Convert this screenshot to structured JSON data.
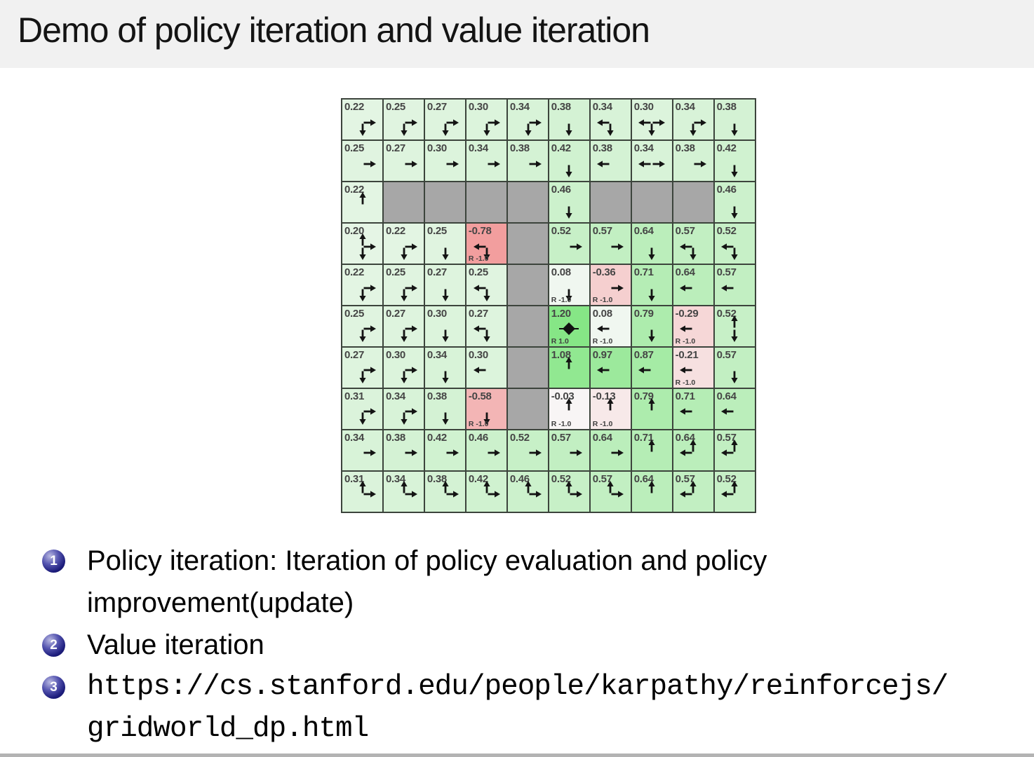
{
  "slide": {
    "title": "Demo of policy iteration and value iteration"
  },
  "bullets": [
    {
      "number": "1",
      "lines": [
        "Policy iteration: Iteration of policy evaluation and policy",
        "improvement(update)"
      ]
    },
    {
      "number": "2",
      "lines": [
        "Value iteration"
      ]
    },
    {
      "number": "3",
      "lines": [
        "https://cs.stanford.edu/people/karpathy/reinforcejs/",
        "gridworld_dp.html"
      ]
    }
  ],
  "colors": {
    "title_bar_bg": "#f1f1f1",
    "slide_bg": "#ffffff",
    "grid_line": "#3c443c",
    "wall_cell": "#a7a7a7",
    "positive_value_cell_max": "#86e686",
    "negative_value_cell": "#f2a0a0",
    "arrow": "#141414",
    "bullet_ball": "#1d1d7c"
  },
  "gridworld": {
    "rows": 10,
    "cols": 10,
    "goal_marker": "diamond",
    "legend": "cells show state value, greedy policy arrows, and reward labels",
    "cells": [
      [
        {
          "v": "0.22",
          "p": [
            "d",
            "r"
          ]
        },
        {
          "v": "0.25",
          "p": [
            "d",
            "r"
          ]
        },
        {
          "v": "0.27",
          "p": [
            "d",
            "r"
          ]
        },
        {
          "v": "0.30",
          "p": [
            "d",
            "r"
          ]
        },
        {
          "v": "0.34",
          "p": [
            "d",
            "r"
          ]
        },
        {
          "v": "0.38",
          "p": [
            "d"
          ]
        },
        {
          "v": "0.34",
          "p": [
            "l",
            "d"
          ]
        },
        {
          "v": "0.30",
          "p": [
            "l",
            "r",
            "d"
          ]
        },
        {
          "v": "0.34",
          "p": [
            "r",
            "d"
          ]
        },
        {
          "v": "0.38",
          "p": [
            "d"
          ]
        }
      ],
      [
        {
          "v": "0.25",
          "p": [
            "r"
          ]
        },
        {
          "v": "0.27",
          "p": [
            "r"
          ]
        },
        {
          "v": "0.30",
          "p": [
            "r"
          ]
        },
        {
          "v": "0.34",
          "p": [
            "r"
          ]
        },
        {
          "v": "0.38",
          "p": [
            "r"
          ]
        },
        {
          "v": "0.42",
          "p": [
            "d"
          ]
        },
        {
          "v": "0.38",
          "p": [
            "l"
          ]
        },
        {
          "v": "0.34",
          "p": [
            "l",
            "r"
          ]
        },
        {
          "v": "0.38",
          "p": [
            "r"
          ]
        },
        {
          "v": "0.42",
          "p": [
            "d"
          ]
        }
      ],
      [
        {
          "v": "0.22",
          "p": [
            "u"
          ]
        },
        {
          "wall": true
        },
        {
          "wall": true
        },
        {
          "wall": true
        },
        {
          "wall": true
        },
        {
          "v": "0.46",
          "p": [
            "d"
          ]
        },
        {
          "wall": true
        },
        {
          "wall": true
        },
        {
          "wall": true
        },
        {
          "v": "0.46",
          "p": [
            "d"
          ]
        }
      ],
      [
        {
          "v": "0.20",
          "p": [
            "u",
            "r",
            "d"
          ]
        },
        {
          "v": "0.22",
          "p": [
            "r",
            "d"
          ]
        },
        {
          "v": "0.25",
          "p": [
            "d"
          ]
        },
        {
          "v": "-0.78",
          "p": [
            "l",
            "d"
          ],
          "r": "R -1.0"
        },
        {
          "wall": true
        },
        {
          "v": "0.52",
          "p": [
            "r"
          ]
        },
        {
          "v": "0.57",
          "p": [
            "r"
          ]
        },
        {
          "v": "0.64",
          "p": [
            "d"
          ]
        },
        {
          "v": "0.57",
          "p": [
            "l",
            "d"
          ]
        },
        {
          "v": "0.52",
          "p": [
            "l",
            "d"
          ]
        }
      ],
      [
        {
          "v": "0.22",
          "p": [
            "r",
            "d"
          ]
        },
        {
          "v": "0.25",
          "p": [
            "r",
            "d"
          ]
        },
        {
          "v": "0.27",
          "p": [
            "d"
          ]
        },
        {
          "v": "0.25",
          "p": [
            "l",
            "d"
          ]
        },
        {
          "wall": true
        },
        {
          "v": "0.08",
          "p": [
            "d"
          ],
          "r": "R -1.0"
        },
        {
          "v": "-0.36",
          "p": [
            "r"
          ],
          "r": "R -1.0"
        },
        {
          "v": "0.71",
          "p": [
            "d"
          ]
        },
        {
          "v": "0.64",
          "p": [
            "l"
          ]
        },
        {
          "v": "0.57",
          "p": [
            "l"
          ]
        }
      ],
      [
        {
          "v": "0.25",
          "p": [
            "r",
            "d"
          ]
        },
        {
          "v": "0.27",
          "p": [
            "r",
            "d"
          ]
        },
        {
          "v": "0.30",
          "p": [
            "d"
          ]
        },
        {
          "v": "0.27",
          "p": [
            "l",
            "d"
          ]
        },
        {
          "wall": true
        },
        {
          "v": "1.20",
          "goal": true,
          "r": "R 1.0"
        },
        {
          "v": "0.08",
          "p": [
            "l"
          ],
          "r": "R -1.0"
        },
        {
          "v": "0.79",
          "p": [
            "d"
          ]
        },
        {
          "v": "-0.29",
          "p": [
            "l"
          ],
          "r": "R -1.0"
        },
        {
          "v": "0.52",
          "p": [
            "u",
            "d"
          ]
        }
      ],
      [
        {
          "v": "0.27",
          "p": [
            "r",
            "d"
          ]
        },
        {
          "v": "0.30",
          "p": [
            "r",
            "d"
          ]
        },
        {
          "v": "0.34",
          "p": [
            "d"
          ]
        },
        {
          "v": "0.30",
          "p": [
            "l"
          ]
        },
        {
          "wall": true
        },
        {
          "v": "1.08",
          "p": [
            "u"
          ]
        },
        {
          "v": "0.97",
          "p": [
            "l"
          ]
        },
        {
          "v": "0.87",
          "p": [
            "l"
          ]
        },
        {
          "v": "-0.21",
          "p": [
            "l"
          ],
          "r": "R -1.0"
        },
        {
          "v": "0.57",
          "p": [
            "d"
          ]
        }
      ],
      [
        {
          "v": "0.31",
          "p": [
            "r",
            "d"
          ]
        },
        {
          "v": "0.34",
          "p": [
            "r",
            "d"
          ]
        },
        {
          "v": "0.38",
          "p": [
            "d"
          ]
        },
        {
          "v": "-0.58",
          "p": [
            "d"
          ],
          "r": "R -1.0"
        },
        {
          "wall": true
        },
        {
          "v": "-0.03",
          "p": [
            "u"
          ],
          "r": "R -1.0"
        },
        {
          "v": "-0.13",
          "p": [
            "u"
          ],
          "r": "R -1.0"
        },
        {
          "v": "0.79",
          "p": [
            "u"
          ]
        },
        {
          "v": "0.71",
          "p": [
            "l"
          ]
        },
        {
          "v": "0.64",
          "p": [
            "l"
          ]
        }
      ],
      [
        {
          "v": "0.34",
          "p": [
            "r"
          ]
        },
        {
          "v": "0.38",
          "p": [
            "r"
          ]
        },
        {
          "v": "0.42",
          "p": [
            "r"
          ]
        },
        {
          "v": "0.46",
          "p": [
            "r"
          ]
        },
        {
          "v": "0.52",
          "p": [
            "r"
          ]
        },
        {
          "v": "0.57",
          "p": [
            "r"
          ]
        },
        {
          "v": "0.64",
          "p": [
            "r"
          ]
        },
        {
          "v": "0.71",
          "p": [
            "u"
          ]
        },
        {
          "v": "0.64",
          "p": [
            "u",
            "l"
          ]
        },
        {
          "v": "0.57",
          "p": [
            "u",
            "l"
          ]
        }
      ],
      [
        {
          "v": "0.31",
          "p": [
            "u",
            "r"
          ]
        },
        {
          "v": "0.34",
          "p": [
            "u",
            "r"
          ]
        },
        {
          "v": "0.38",
          "p": [
            "u",
            "r"
          ]
        },
        {
          "v": "0.42",
          "p": [
            "u",
            "r"
          ]
        },
        {
          "v": "0.46",
          "p": [
            "u",
            "r"
          ]
        },
        {
          "v": "0.52",
          "p": [
            "u",
            "r"
          ]
        },
        {
          "v": "0.57",
          "p": [
            "u",
            "r"
          ]
        },
        {
          "v": "0.64",
          "p": [
            "u"
          ]
        },
        {
          "v": "0.57",
          "p": [
            "u",
            "l"
          ]
        },
        {
          "v": "0.52",
          "p": [
            "u",
            "l"
          ]
        }
      ]
    ]
  }
}
